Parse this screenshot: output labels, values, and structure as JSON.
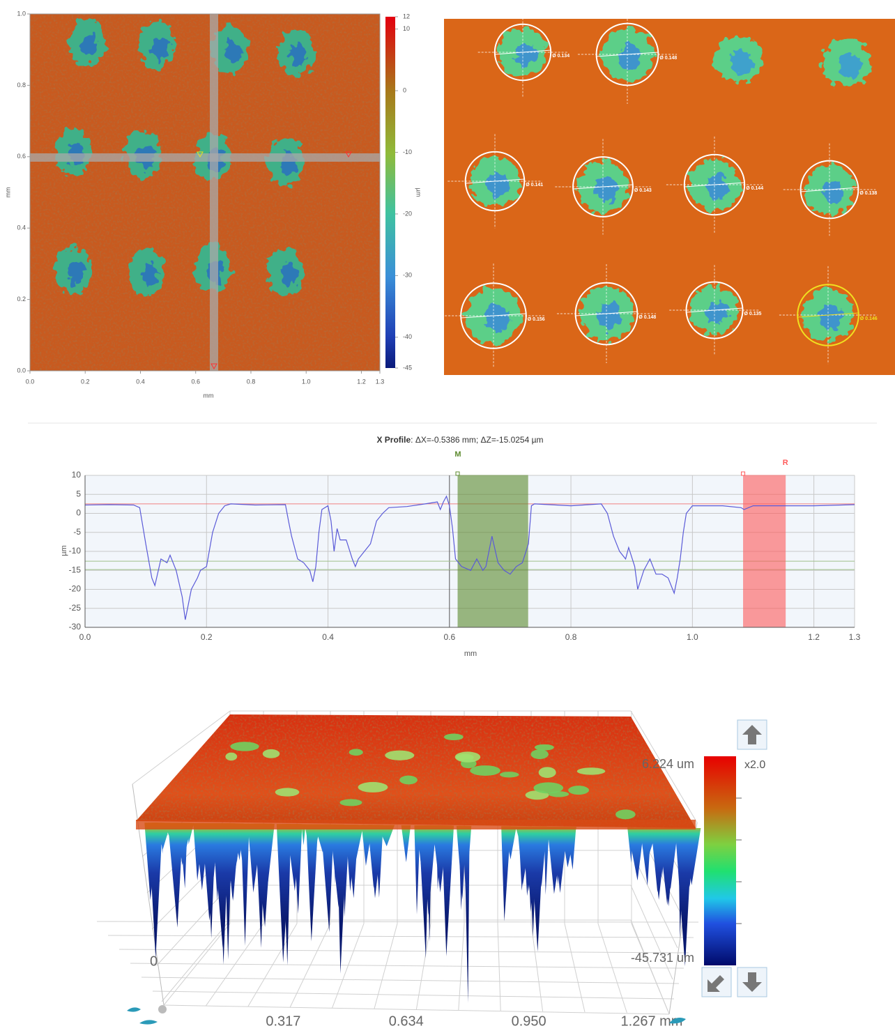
{
  "chart_data": [
    {
      "type": "heatmap",
      "xlabel": "mm",
      "ylabel": "mm",
      "xlim": [
        0,
        1.267
      ],
      "xticks": [
        {
          "value": 0,
          "label": "0.0"
        },
        0.2,
        0.4,
        0.6,
        0.8,
        {
          "value": 1,
          "label": "1.0"
        },
        1.2,
        {
          "value": 1.267,
          "label": "1.3"
        }
      ],
      "ylim": [
        0,
        1
      ],
      "yticks": [
        {
          "value": 0,
          "label": "0.0"
        },
        0.2,
        0.4,
        0.6,
        0.8,
        {
          "value": 1,
          "label": "1.0"
        }
      ],
      "colorbar": {
        "label": "µm",
        "lim": [
          -45,
          12
        ],
        "ticks": [
          12,
          10,
          0,
          -10,
          -20,
          -30,
          -40,
          -45
        ]
      }
    },
    {
      "type": "annotated-image",
      "values": [
        0.134,
        0.148,
        0.141,
        0.143,
        0.144,
        0.138,
        0.156,
        0.148,
        0.135,
        0.146
      ],
      "value_labels": [
        "Ø 0.134",
        "Ø 0.148",
        "Ø 0.141",
        "Ø 0.143",
        "Ø 0.144",
        "Ø 0.138",
        "Ø 0.156",
        "Ø 0.148",
        "Ø 0.135",
        "Ø 0.146"
      ]
    },
    {
      "type": "line",
      "title": "X Profile",
      "subtitle": ": ΔX=-0.5386 mm; ΔZ=-15.0254 µm",
      "xlabel": "mm",
      "ylabel": "µm",
      "color": "#5a5ad8",
      "grid": true,
      "xlim": [
        0,
        1.267
      ],
      "xticks": [
        {
          "value": 0,
          "label": "0.0"
        },
        0.2,
        0.4,
        0.6,
        0.8,
        {
          "value": 1,
          "label": "1.0"
        },
        1.2,
        {
          "value": 1.267,
          "label": "1.3"
        }
      ],
      "ylim": [
        -30,
        10
      ],
      "yticks": [
        -30,
        -25,
        -20,
        -15,
        -10,
        -5,
        0,
        5,
        10
      ],
      "x": [
        0,
        0.04,
        0.08,
        0.09,
        0.1,
        0.11,
        0.115,
        0.125,
        0.135,
        0.14,
        0.15,
        0.16,
        0.165,
        0.175,
        0.185,
        0.19,
        0.2,
        0.21,
        0.22,
        0.23,
        0.24,
        0.28,
        0.33,
        0.335,
        0.34,
        0.35,
        0.36,
        0.37,
        0.375,
        0.38,
        0.385,
        0.39,
        0.4,
        0.405,
        0.41,
        0.415,
        0.42,
        0.43,
        0.44,
        0.445,
        0.45,
        0.46,
        0.47,
        0.48,
        0.49,
        0.5,
        0.53,
        0.56,
        0.58,
        0.585,
        0.59,
        0.595,
        0.6,
        0.605,
        0.61,
        0.62,
        0.635,
        0.645,
        0.655,
        0.66,
        0.67,
        0.68,
        0.69,
        0.7,
        0.71,
        0.72,
        0.73,
        0.735,
        0.74,
        0.8,
        0.85,
        0.86,
        0.87,
        0.88,
        0.89,
        0.895,
        0.905,
        0.91,
        0.92,
        0.93,
        0.94,
        0.95,
        0.96,
        0.97,
        0.975,
        0.98,
        0.985,
        0.99,
        1.0,
        1.05,
        1.08,
        1.085,
        1.1,
        1.2,
        1.267
      ],
      "values": [
        2.2,
        2.3,
        2.2,
        1.5,
        -8,
        -17,
        -19,
        -12,
        -13,
        -11,
        -15,
        -22,
        -28,
        -20,
        -17,
        -15,
        -14,
        -5,
        0,
        2,
        2.5,
        2.2,
        2.3,
        -2,
        -6,
        -12,
        -13,
        -15,
        -18,
        -14,
        -5,
        1,
        2,
        -2,
        -10,
        -4,
        -7,
        -7,
        -12,
        -14,
        -12,
        -10,
        -8,
        -2,
        0,
        1.5,
        1.8,
        2.5,
        3,
        1,
        3,
        4.5,
        2,
        -4,
        -12,
        -14,
        -15,
        -12,
        -15,
        -14,
        -6,
        -13,
        -15,
        -16,
        -14,
        -13,
        -8,
        2,
        2.5,
        2,
        2.5,
        0,
        -6,
        -10,
        -12,
        -9,
        -14,
        -20,
        -15,
        -12,
        -16,
        -16,
        -17,
        -21,
        -17,
        -12,
        -5,
        0,
        2,
        2,
        1.5,
        1,
        2,
        2,
        2.3
      ],
      "regions": [
        {
          "label": "M",
          "start": 0.614,
          "end": 0.729,
          "color": "#5c8a2e"
        },
        {
          "label": "R",
          "start": 1.084,
          "end": 1.153,
          "color": "#ff5a5a"
        }
      ],
      "reference_lines": [
        {
          "value": 2.5,
          "color": "#f08080"
        },
        {
          "value": -12.6,
          "color": "#9fc08a"
        },
        {
          "value": -14.8,
          "color": "#9fc08a"
        }
      ]
    },
    {
      "type": "surface3d",
      "xlim": [
        0,
        1.267
      ],
      "xticks": [
        0,
        0.317,
        0.634,
        {
          "value": 0.95,
          "label": "0.950"
        },
        {
          "value": 1.267,
          "label": "1.267 mm"
        }
      ],
      "zlim": [
        -45.731,
        6.224
      ],
      "zticks": [
        {
          "value": 6.224,
          "label": "6.224 um"
        },
        {
          "value": -45.731,
          "label": "-45.731 um"
        }
      ],
      "scale_label": "x2.0"
    }
  ]
}
